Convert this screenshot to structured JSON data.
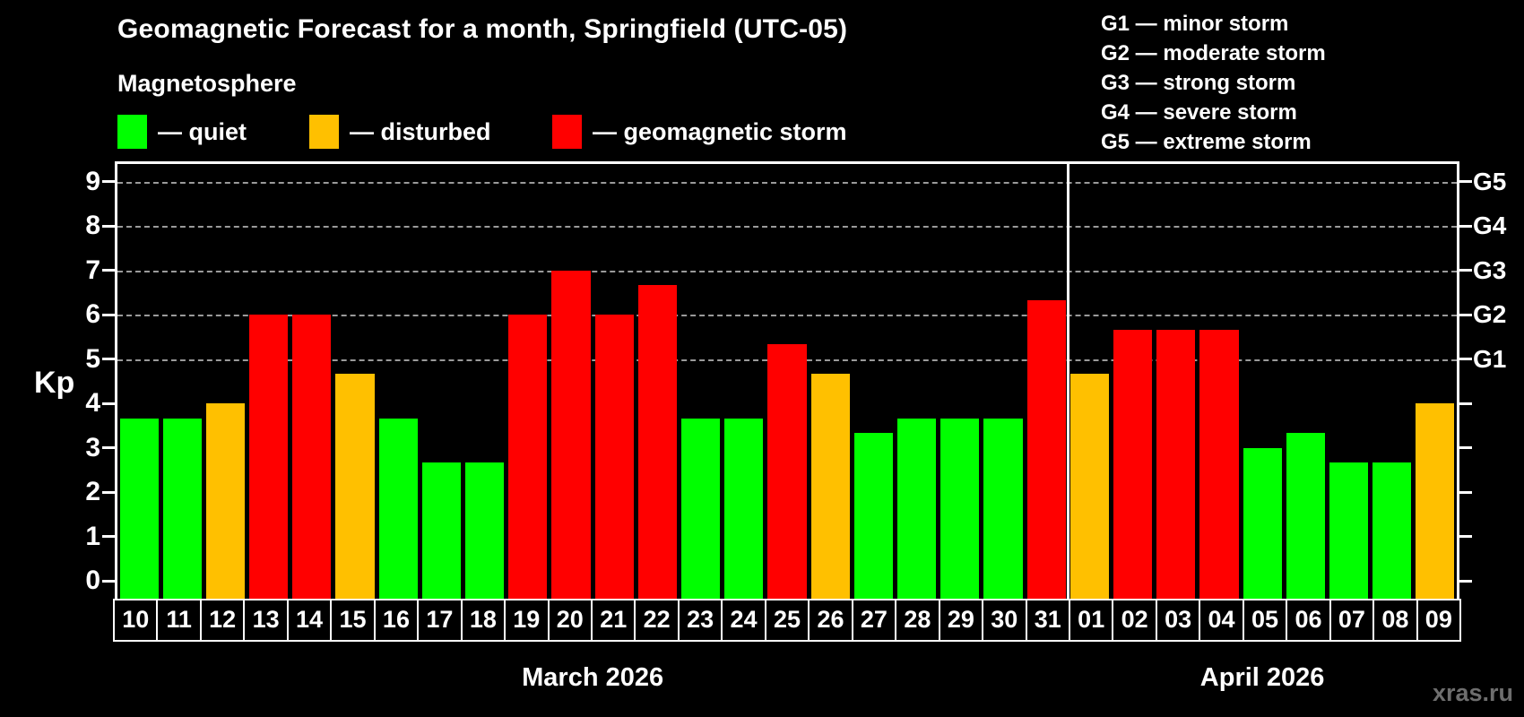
{
  "title": "Geomagnetic Forecast for a month, Springfield (UTC-05)",
  "subtitle": "Magnetosphere",
  "legend": {
    "items": [
      {
        "key": "quiet",
        "label": "— quiet",
        "color": "#00ff00"
      },
      {
        "key": "disturbed",
        "label": "— disturbed",
        "color": "#ffc000"
      },
      {
        "key": "storm",
        "label": "— geomagnetic storm",
        "color": "#ff0000"
      }
    ]
  },
  "storm_scale_legend": [
    "G1 — minor storm",
    "G2 — moderate storm",
    "G3 — strong storm",
    "G4 — severe storm",
    "G5 — extreme storm"
  ],
  "watermark": "xras.ru",
  "chart_data": {
    "type": "bar",
    "ylabel": "Kp",
    "ylim": [
      -0.4,
      9.4
    ],
    "yticks": [
      0,
      1,
      2,
      3,
      4,
      5,
      6,
      7,
      8,
      9
    ],
    "gridlines_at": [
      5,
      6,
      7,
      8,
      9
    ],
    "right_axis_labels": [
      {
        "kp": 5,
        "label": "G1"
      },
      {
        "kp": 6,
        "label": "G2"
      },
      {
        "kp": 7,
        "label": "G3"
      },
      {
        "kp": 8,
        "label": "G4"
      },
      {
        "kp": 9,
        "label": "G5"
      }
    ],
    "grid": "dashed horizontal at storm levels only",
    "colors": {
      "quiet": "#00ff00",
      "disturbed": "#ffc000",
      "storm": "#ff0000"
    },
    "color_thresholds": {
      "disturbed_min": 4.0,
      "storm_min": 5.0
    },
    "months": [
      {
        "label": "March 2026",
        "days": [
          "10",
          "11",
          "12",
          "13",
          "14",
          "15",
          "16",
          "17",
          "18",
          "19",
          "20",
          "21",
          "22",
          "23",
          "24",
          "25",
          "26",
          "27",
          "28",
          "29",
          "30",
          "31"
        ],
        "values": [
          3.67,
          3.67,
          4.0,
          6.0,
          6.0,
          4.67,
          3.67,
          2.67,
          2.67,
          6.0,
          7.0,
          6.0,
          6.67,
          3.67,
          3.67,
          5.33,
          4.67,
          3.33,
          3.67,
          3.67,
          3.67,
          6.33
        ]
      },
      {
        "label": "April 2026",
        "days": [
          "01",
          "02",
          "03",
          "04",
          "05",
          "06",
          "07",
          "08",
          "09"
        ],
        "values": [
          4.67,
          5.67,
          5.67,
          5.67,
          3.0,
          3.33,
          2.67,
          2.67,
          4.0
        ]
      }
    ]
  }
}
